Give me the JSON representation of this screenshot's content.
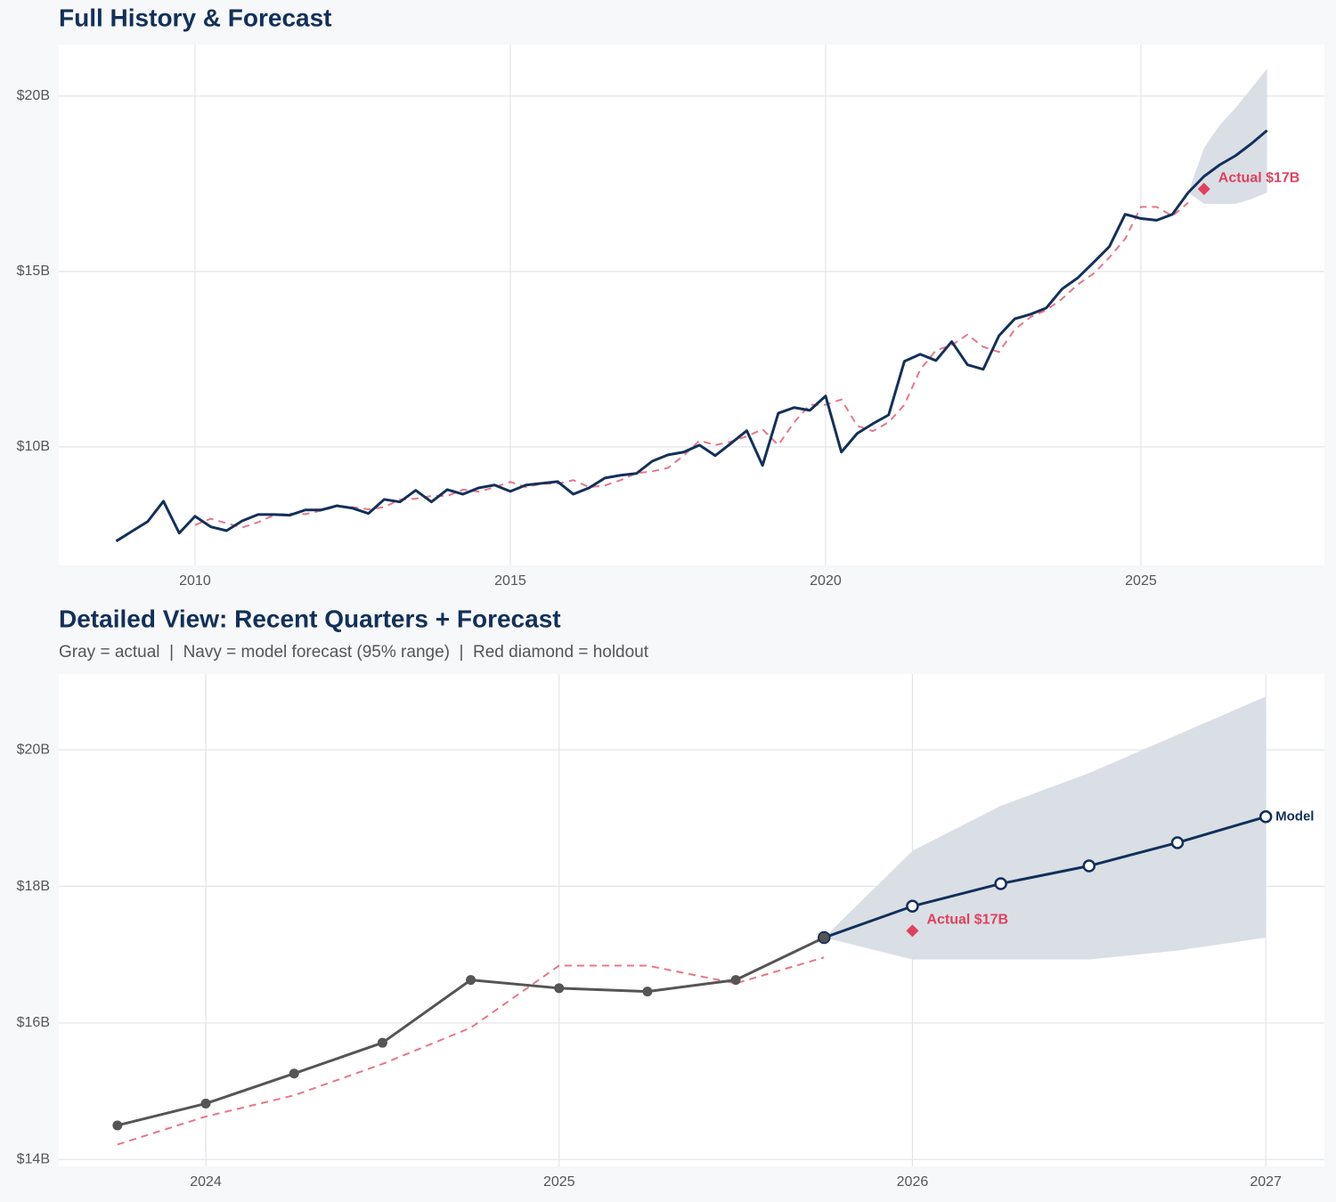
{
  "chart_data": [
    {
      "type": "line",
      "title": "Full History & Forecast",
      "xlim": [
        2007.84,
        2027.91
      ],
      "xticks": [
        2010,
        2015,
        2020,
        2025
      ],
      "ylim": [
        6.62,
        21.47
      ],
      "yticks": [
        {
          "value": 10,
          "label": "$10B"
        },
        {
          "value": 15,
          "label": "$15B"
        },
        {
          "value": 20,
          "label": "$20B"
        }
      ],
      "grid": true,
      "band": {
        "color": "#dadfe5",
        "x": [
          2025.75,
          2026,
          2026.25,
          2026.5,
          2026.75,
          2027
        ],
        "lower": [
          17.25,
          16.93,
          16.93,
          16.93,
          17.06,
          17.25
        ],
        "upper": [
          17.25,
          18.52,
          19.18,
          19.66,
          20.22,
          20.78
        ]
      },
      "series": [
        {
          "color": "#e8768a",
          "dash": true,
          "x": [
            2010,
            2010.25,
            2010.5,
            2010.75,
            2011,
            2011.25,
            2011.5,
            2011.75,
            2012,
            2012.25,
            2012.5,
            2012.75,
            2013,
            2013.25,
            2013.5,
            2013.75,
            2014,
            2014.25,
            2014.5,
            2014.75,
            2015,
            2015.25,
            2015.5,
            2015.75,
            2016,
            2016.25,
            2016.5,
            2016.75,
            2017,
            2017.25,
            2017.5,
            2017.75,
            2018,
            2018.25,
            2018.5,
            2018.75,
            2019,
            2019.25,
            2019.5,
            2019.75,
            2020,
            2020.25,
            2020.5,
            2020.75,
            2021,
            2021.25,
            2021.5,
            2021.75,
            2022,
            2022.25,
            2022.5,
            2022.75,
            2023,
            2023.25,
            2023.5,
            2023.75,
            2024,
            2024.25,
            2024.5,
            2024.75,
            2025,
            2025.25,
            2025.5,
            2025.75
          ],
          "values": [
            7.77,
            7.95,
            7.82,
            7.7,
            7.85,
            8.05,
            8.1,
            8.08,
            8.18,
            8.3,
            8.28,
            8.22,
            8.28,
            8.5,
            8.52,
            8.6,
            8.6,
            8.78,
            8.72,
            8.85,
            9.0,
            8.85,
            8.95,
            8.95,
            9.05,
            8.85,
            8.9,
            9.05,
            9.25,
            9.3,
            9.4,
            9.75,
            10.18,
            10.05,
            10.15,
            10.3,
            10.5,
            10.05,
            10.7,
            11.2,
            11.2,
            11.35,
            10.6,
            10.45,
            10.7,
            11.2,
            12.2,
            12.75,
            12.9,
            13.2,
            12.85,
            12.7,
            13.35,
            13.7,
            13.9,
            14.22,
            14.63,
            14.94,
            15.4,
            15.93,
            16.84,
            16.84,
            16.58,
            16.96
          ]
        },
        {
          "color": "#12305a",
          "x": [
            2025.75,
            2026,
            2026.25,
            2026.5,
            2026.75,
            2027
          ],
          "values": [
            17.25,
            17.71,
            18.04,
            18.3,
            18.64,
            19.02
          ]
        },
        {
          "color": "#12305a",
          "x": [
            2008.75,
            2009,
            2009.25,
            2009.5,
            2009.75,
            2010,
            2010.25,
            2010.5,
            2010.75,
            2011,
            2011.25,
            2011.5,
            2011.75,
            2012,
            2012.25,
            2012.5,
            2012.75,
            2013,
            2013.25,
            2013.5,
            2013.75,
            2014,
            2014.25,
            2014.5,
            2014.75,
            2015,
            2015.25,
            2015.5,
            2015.75,
            2016,
            2016.25,
            2016.5,
            2016.75,
            2017,
            2017.25,
            2017.5,
            2017.75,
            2018,
            2018.25,
            2018.5,
            2018.75,
            2019,
            2019.25,
            2019.5,
            2019.75,
            2020,
            2020.25,
            2020.5,
            2020.75,
            2021,
            2021.25,
            2021.5,
            2021.75,
            2022,
            2022.25,
            2022.5,
            2022.75,
            2023,
            2023.25,
            2023.5,
            2023.75,
            2024,
            2024.25,
            2024.5,
            2024.75,
            2025,
            2025.25,
            2025.5,
            2025.75
          ],
          "values": [
            7.31,
            7.59,
            7.87,
            8.45,
            7.54,
            8.02,
            7.72,
            7.61,
            7.89,
            8.07,
            8.07,
            8.05,
            8.2,
            8.2,
            8.32,
            8.25,
            8.1,
            8.5,
            8.43,
            8.76,
            8.43,
            8.78,
            8.65,
            8.83,
            8.91,
            8.73,
            8.91,
            8.96,
            9.01,
            8.65,
            8.83,
            9.11,
            9.19,
            9.24,
            9.59,
            9.77,
            9.85,
            10.05,
            9.75,
            10.1,
            10.46,
            9.47,
            10.96,
            11.12,
            11.04,
            11.45,
            9.85,
            10.38,
            10.66,
            10.91,
            12.44,
            12.64,
            12.46,
            13.0,
            12.34,
            12.21,
            13.17,
            13.65,
            13.78,
            13.96,
            14.5,
            14.82,
            15.26,
            15.71,
            16.63,
            16.51,
            16.46,
            16.63,
            17.25
          ]
        }
      ],
      "holdout": {
        "x": 2026,
        "value": 17.35,
        "label": "Actual $17B",
        "color": "#e0405e"
      }
    },
    {
      "type": "line",
      "title": "Detailed View: Recent Quarters + Forecast",
      "subtitle": "Gray = actual  |  Navy = model forecast (95% range)  |  Red diamond = holdout",
      "xlim": [
        2023.584,
        2027.166
      ],
      "xticks": [
        2024,
        2025,
        2026,
        2027
      ],
      "ylim": [
        13.9,
        21.11
      ],
      "yticks": [
        {
          "value": 14,
          "label": "$14B"
        },
        {
          "value": 16,
          "label": "$16B"
        },
        {
          "value": 18,
          "label": "$18B"
        },
        {
          "value": 20,
          "label": "$20B"
        }
      ],
      "grid": true,
      "band": {
        "color": "#dadfe5",
        "x": [
          2025.75,
          2026,
          2026.25,
          2026.5,
          2026.75,
          2027
        ],
        "lower": [
          17.25,
          16.93,
          16.93,
          16.93,
          17.06,
          17.25
        ],
        "upper": [
          17.25,
          18.52,
          19.18,
          19.66,
          20.22,
          20.78
        ]
      },
      "series": [
        {
          "color": "#e8768a",
          "dash": true,
          "x": [
            2023.75,
            2024,
            2024.25,
            2024.5,
            2024.75,
            2025,
            2025.25,
            2025.5,
            2025.75
          ],
          "values": [
            14.22,
            14.63,
            14.94,
            15.4,
            15.93,
            16.84,
            16.84,
            16.58,
            16.96
          ]
        },
        {
          "name": "Model",
          "color": "#12305a",
          "marker": "hollow",
          "x": [
            2025.75,
            2026,
            2026.25,
            2026.5,
            2026.75,
            2027
          ],
          "values": [
            17.25,
            17.71,
            18.04,
            18.3,
            18.64,
            19.02
          ]
        },
        {
          "color": "#555555",
          "marker": "filled",
          "x": [
            2023.75,
            2024,
            2024.25,
            2024.5,
            2024.75,
            2025,
            2025.25,
            2025.5,
            2025.75
          ],
          "values": [
            14.5,
            14.82,
            15.26,
            15.71,
            16.63,
            16.51,
            16.46,
            16.63,
            17.25
          ]
        }
      ],
      "holdout": {
        "x": 2026,
        "value": 17.35,
        "label": "Actual $17B",
        "color": "#e0405e"
      }
    }
  ]
}
